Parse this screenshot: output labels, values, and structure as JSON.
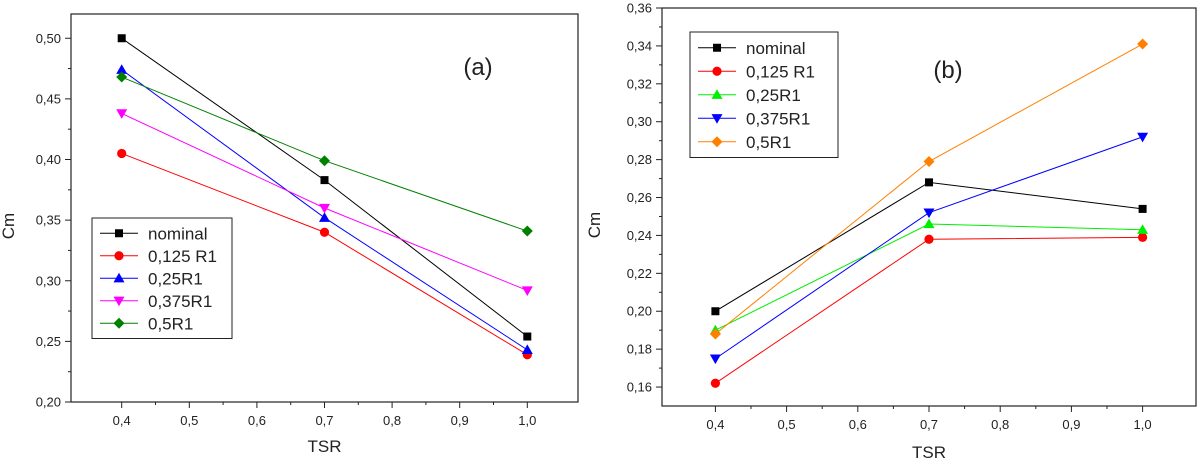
{
  "chart_data": [
    {
      "type": "line",
      "panel_label": "(a)",
      "title": "",
      "xlabel": "TSR",
      "ylabel": "Cm",
      "xlim": [
        0.325,
        1.075
      ],
      "ylim": [
        0.2,
        0.52
      ],
      "x_ticks": [
        0.4,
        0.5,
        0.6,
        0.7,
        0.8,
        0.9,
        1.0
      ],
      "x_tick_labels": [
        "0,4",
        "0,5",
        "0,6",
        "0,7",
        "0,8",
        "0,9",
        "1,0"
      ],
      "y_ticks": [
        0.2,
        0.25,
        0.3,
        0.35,
        0.4,
        0.45,
        0.5
      ],
      "y_tick_labels": [
        "0,20",
        "0,25",
        "0,30",
        "0,35",
        "0,40",
        "0,45",
        "0,50"
      ],
      "grid": false,
      "legend_position": "bottom-left",
      "x": [
        0.4,
        0.7,
        1.0
      ],
      "series": [
        {
          "name": "nominal",
          "values": [
            0.5,
            0.383,
            0.254
          ],
          "color": "#000000",
          "marker": "square"
        },
        {
          "name": "0,125 R1",
          "values": [
            0.405,
            0.34,
            0.239
          ],
          "color": "#ff0000",
          "marker": "circle"
        },
        {
          "name": "0,25R1",
          "values": [
            0.474,
            0.352,
            0.243
          ],
          "color": "#0000ff",
          "marker": "triangle-up"
        },
        {
          "name": "0,375R1",
          "values": [
            0.438,
            0.36,
            0.292
          ],
          "color": "#ff00ff",
          "marker": "triangle-down"
        },
        {
          "name": "0,5R1",
          "values": [
            0.468,
            0.399,
            0.341
          ],
          "color": "#008000",
          "marker": "diamond"
        }
      ]
    },
    {
      "type": "line",
      "panel_label": "(b)",
      "title": "",
      "xlabel": "TSR",
      "ylabel": "Cm",
      "xlim": [
        0.325,
        1.075
      ],
      "ylim": [
        0.15,
        0.36
      ],
      "x_ticks": [
        0.4,
        0.5,
        0.6,
        0.7,
        0.8,
        0.9,
        1.0
      ],
      "x_tick_labels": [
        "0,4",
        "0,5",
        "0,6",
        "0,7",
        "0,8",
        "0,9",
        "1,0"
      ],
      "y_ticks": [
        0.16,
        0.18,
        0.2,
        0.22,
        0.24,
        0.26,
        0.28,
        0.3,
        0.32,
        0.34,
        0.36
      ],
      "y_tick_labels": [
        "0,16",
        "0,18",
        "0,20",
        "0,22",
        "0,24",
        "0,26",
        "0,28",
        "0,30",
        "0,32",
        "0,34",
        "0,36"
      ],
      "grid": false,
      "legend_position": "top-left",
      "x": [
        0.4,
        0.7,
        1.0
      ],
      "series": [
        {
          "name": "nominal",
          "values": [
            0.2,
            0.268,
            0.254
          ],
          "color": "#000000",
          "marker": "square"
        },
        {
          "name": "0,125 R1",
          "values": [
            0.162,
            0.238,
            0.239
          ],
          "color": "#ff0000",
          "marker": "circle"
        },
        {
          "name": "0,25R1",
          "values": [
            0.19,
            0.246,
            0.243
          ],
          "color": "#00ee00",
          "marker": "triangle-up"
        },
        {
          "name": "0,375R1",
          "values": [
            0.175,
            0.252,
            0.292
          ],
          "color": "#0000ff",
          "marker": "triangle-down"
        },
        {
          "name": "0,5R1",
          "values": [
            0.188,
            0.279,
            0.341
          ],
          "color": "#ff8000",
          "marker": "diamond"
        }
      ]
    }
  ]
}
